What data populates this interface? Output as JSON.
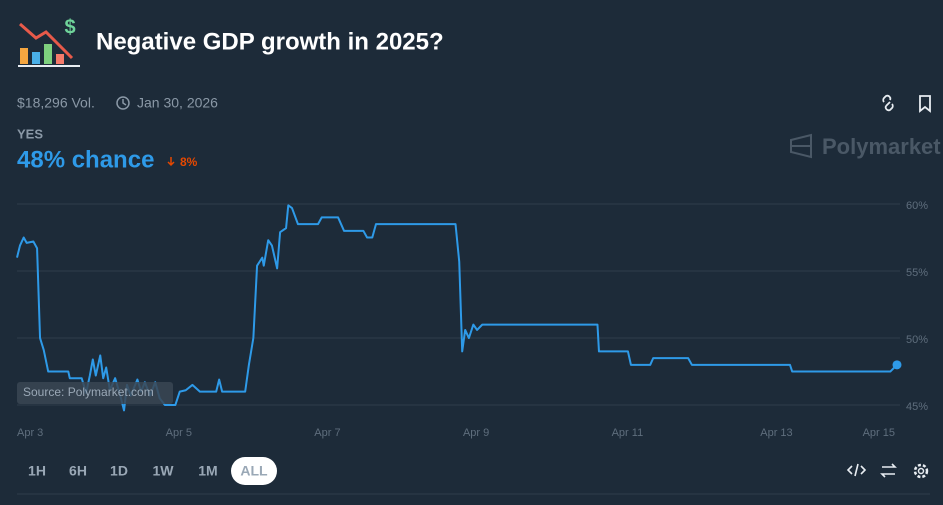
{
  "header": {
    "title": "Negative GDP growth in 2025?",
    "volume": "$18,296 Vol.",
    "end_date": "Jan 30, 2026",
    "outcome": "YES",
    "chance": "48% chance",
    "change": "8%",
    "brand": "Polymarket",
    "source": "Source: Polymarket.com"
  },
  "ranges": [
    "1H",
    "6H",
    "1D",
    "1W",
    "1M",
    "ALL"
  ],
  "chart_data": {
    "type": "line",
    "color": "#2e9ae8",
    "grid": true,
    "x": [
      3.0,
      3.04,
      3.09,
      3.13,
      3.22,
      3.27,
      3.31,
      3.36,
      3.42,
      3.69,
      3.71,
      3.87,
      3.93,
      3.98,
      4.02,
      4.06,
      4.12,
      4.16,
      4.2,
      4.25,
      4.32,
      4.39,
      4.44,
      4.48,
      4.53,
      4.62,
      4.67,
      4.72,
      4.79,
      4.86,
      4.92,
      4.99,
      5.13,
      5.19,
      5.27,
      5.36,
      5.44,
      5.46,
      5.68,
      5.72,
      5.76,
      6.07,
      6.12,
      6.18,
      6.23,
      6.3,
      6.32,
      6.38,
      6.43,
      6.5,
      6.54,
      6.62,
      6.65,
      6.7,
      6.78,
      7.05,
      7.1,
      7.32,
      7.4,
      7.66,
      7.71,
      7.78,
      7.83,
      8.9,
      8.95,
      8.99,
      9.03,
      9.08,
      9.14,
      9.19,
      9.26,
      10.81,
      10.83,
      11.22,
      11.26,
      11.52,
      11.56,
      12.03,
      12.08,
      13.4,
      13.43,
      14.75,
      14.84
    ],
    "values": [
      56.0,
      56.9,
      57.5,
      57.1,
      57.2,
      56.7,
      50.0,
      49.1,
      47.5,
      47.5,
      47.0,
      47.0,
      45.9,
      47.2,
      48.4,
      47.2,
      48.7,
      47.0,
      47.8,
      46.1,
      47.0,
      45.7,
      44.6,
      46.5,
      45.7,
      46.9,
      46.0,
      46.7,
      45.7,
      46.7,
      45.5,
      45.0,
      45.0,
      46.0,
      46.1,
      46.5,
      46.1,
      46.0,
      46.0,
      46.9,
      46.0,
      46.0,
      48.0,
      50.0,
      55.4,
      56.0,
      55.4,
      57.3,
      56.9,
      55.2,
      57.9,
      58.2,
      59.9,
      59.7,
      58.5,
      58.5,
      59.0,
      59.0,
      58.0,
      58.0,
      57.5,
      57.5,
      58.5,
      58.5,
      55.7,
      49.0,
      50.6,
      50.0,
      51.0,
      50.6,
      51.0,
      51.0,
      49.0,
      49.0,
      48.0,
      48.0,
      48.5,
      48.5,
      48.0,
      48.0,
      47.5,
      47.5,
      48.0
    ],
    "xlim": [
      3,
      14.84
    ],
    "xticks": [
      {
        "value": 3,
        "label": "Apr 3"
      },
      {
        "value": 5,
        "label": "Apr 5"
      },
      {
        "value": 7,
        "label": "Apr 7"
      },
      {
        "value": 9,
        "label": "Apr 9"
      },
      {
        "value": 11,
        "label": "Apr 11"
      },
      {
        "value": 13,
        "label": "Apr 13"
      },
      {
        "value": 15,
        "label": "Apr 15"
      }
    ],
    "ylim": [
      44.3,
      60.3
    ],
    "yticks": [
      {
        "value": 45,
        "label": "45%"
      },
      {
        "value": 50,
        "label": "50%"
      },
      {
        "value": 55,
        "label": "55%"
      },
      {
        "value": 60,
        "label": "60%"
      }
    ]
  }
}
